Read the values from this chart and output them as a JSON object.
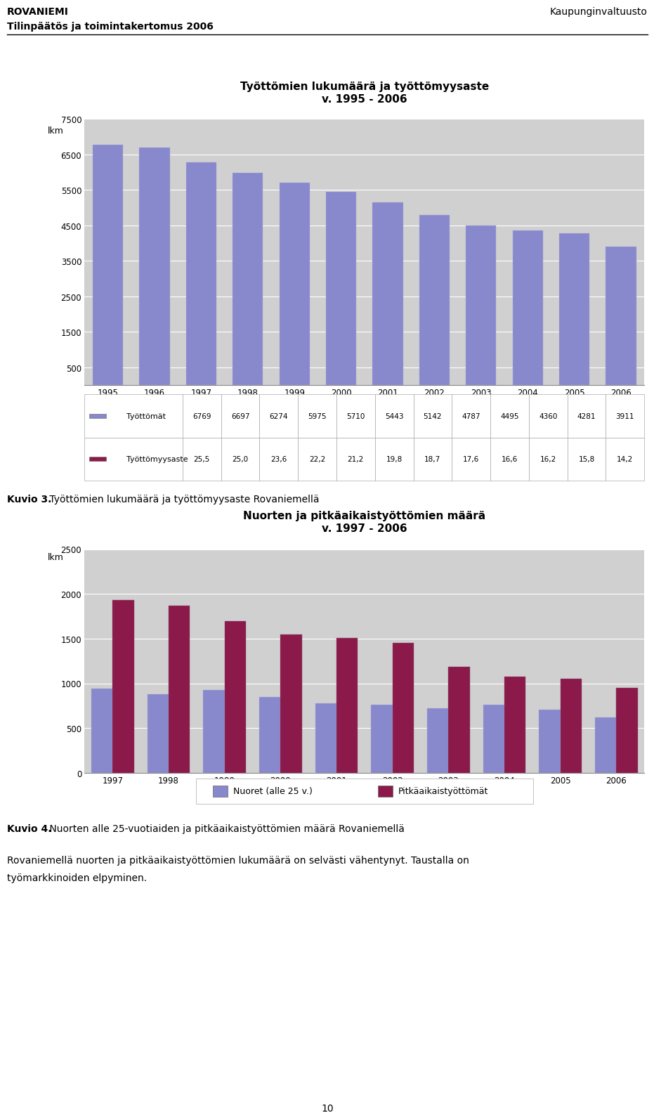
{
  "page_title_left1": "ROVANIEMI",
  "page_title_left2": "Tilinpäätös ja toimintakertomus 2006",
  "page_title_right": "Kaupunginvaltuusto",
  "page_number": "10",
  "chart1_title": "Työttömien lukumäärä ja työttömyysaste\nv. 1995 - 2006",
  "chart1_ylabel": "lkm",
  "chart1_years": [
    1995,
    1996,
    1997,
    1998,
    1999,
    2000,
    2001,
    2002,
    2003,
    2004,
    2005,
    2006
  ],
  "chart1_tyottomat": [
    6769,
    6697,
    6274,
    5975,
    5710,
    5443,
    5142,
    4787,
    4495,
    4360,
    4281,
    3911
  ],
  "chart1_tyottomyysaste": [
    "25,5",
    "25,0",
    "23,6",
    "22,2",
    "21,2",
    "19,8",
    "18,7",
    "17,6",
    "16,6",
    "16,2",
    "15,8",
    "14,2"
  ],
  "chart1_bar_color": "#8888cc",
  "chart1_ylim": [
    0,
    7500
  ],
  "chart1_yticks": [
    500,
    1500,
    2500,
    3500,
    4500,
    5500,
    6500,
    7500
  ],
  "chart1_bg_color": "#d0d0d0",
  "chart1_legend_tyottomat": "Työttömät",
  "chart1_legend_tyottomyysaste": "Työttömyysaste",
  "chart1_legend_color_tyottomat": "#8888cc",
  "chart1_legend_color_tyottomyysaste": "#8b1a4a",
  "caption1_bold": "Kuvio 3.",
  "caption1_rest": " Työttömien lukumäärä ja työttömyysaste Rovaniemellä",
  "chart2_title": "Nuorten ja pitkäaikaistyöttömien määrä\nv. 1997 - 2006",
  "chart2_ylabel": "lkm",
  "chart2_years": [
    1997,
    1998,
    1999,
    2000,
    2001,
    2002,
    2003,
    2004,
    2005,
    2006
  ],
  "chart2_nuoret": [
    940,
    880,
    930,
    850,
    780,
    760,
    720,
    760,
    710,
    620
  ],
  "chart2_pitkaaikais": [
    1930,
    1870,
    1700,
    1545,
    1510,
    1455,
    1185,
    1075,
    1050,
    955
  ],
  "chart2_bar_color_nuoret": "#8888cc",
  "chart2_bar_color_pitkaaikais": "#8b1a4a",
  "chart2_ylim": [
    0,
    2500
  ],
  "chart2_yticks": [
    0,
    500,
    1000,
    1500,
    2000,
    2500
  ],
  "chart2_bg_color": "#d0d0d0",
  "chart2_legend_nuoret": "Nuoret (alle 25 v.)",
  "chart2_legend_pitkaaikais": "Pitkäaikaistyöttömät",
  "caption2_bold": "Kuvio 4.",
  "caption2_rest": " Nuorten alle 25-vuotiaiden ja pitkäaikaistyöttömien määrä Rovaniemellä",
  "body_text1": "Rovaniemellä nuorten ja pitkäaikaistyöttömien lukumäärä on selvästi vähentynyt. Taustalla on",
  "body_text2": "työmarkkinoiden elpyminen."
}
